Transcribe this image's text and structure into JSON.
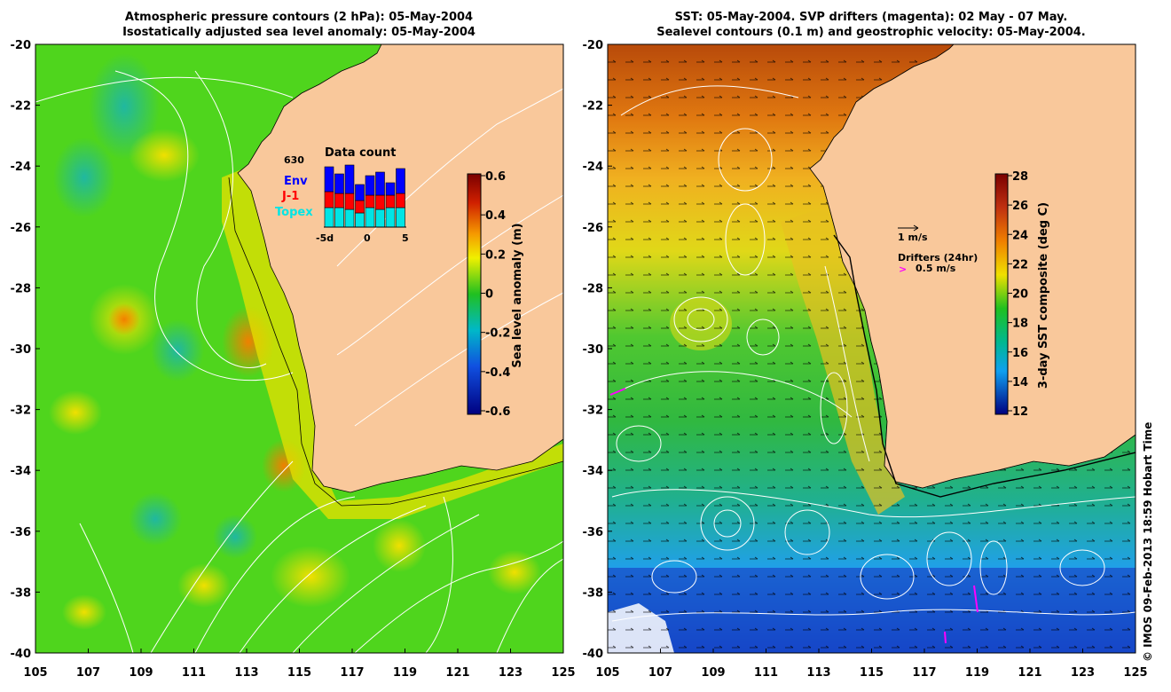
{
  "left_panel": {
    "title_line1": "Atmospheric pressure contours (2 hPa): 05-May-2004",
    "title_line2": "Isostatically adjusted sea level anomaly: 05-May-2004",
    "colorbar_label": "Sea level anomaly (m)",
    "colorbar_ticks": [
      "0.6",
      "0.4",
      "0.2",
      "0",
      "-0.2",
      "-0.4",
      "-0.6"
    ],
    "inset": {
      "title": "Data count",
      "max_label": "630",
      "legend": [
        {
          "name": "Env",
          "color": "#0000ff"
        },
        {
          "name": "J-1",
          "color": "#ff0000"
        },
        {
          "name": "Topex",
          "color": "#00e5e5"
        }
      ],
      "x_labels": [
        "-5d",
        "0",
        "5"
      ]
    }
  },
  "right_panel": {
    "title_line1": "SST: 05-May-2004. SVP drifters (magenta): 02 May - 07 May.",
    "title_line2": "Sealevel contours (0.1 m) and geostrophic velocity: 05-May-2004.",
    "colorbar_label": "3-day SST composite (deg C)",
    "colorbar_ticks": [
      "28",
      "26",
      "24",
      "22",
      "20",
      "18",
      "16",
      "14",
      "12"
    ],
    "velocity_legend": "1 m/s",
    "drifter_title": "Drifters (24hr)",
    "drifter_speed": "0.5 m/s",
    "drifter_color": "#ff00ff"
  },
  "axes": {
    "lat_labels": [
      "-20",
      "-22",
      "-24",
      "-26",
      "-28",
      "-30",
      "-32",
      "-34",
      "-36",
      "-38",
      "-40"
    ],
    "lon_labels": [
      "105",
      "107",
      "109",
      "111",
      "113",
      "115",
      "117",
      "119",
      "121",
      "123",
      "125"
    ]
  },
  "credit": "© IMOS 09-Feb-2013 18:59 Hobart Time",
  "colors": {
    "land": "#f9c89b",
    "ocean_anomaly_base": "#4fd51d",
    "sst_warm": "#e07810",
    "sst_cool": "#1aa0f0"
  }
}
